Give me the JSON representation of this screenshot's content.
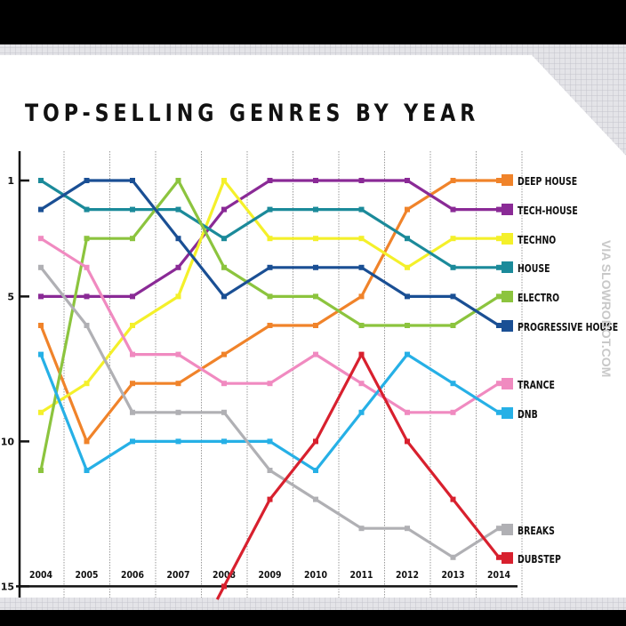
{
  "chart_data": {
    "type": "line",
    "title": "TOP-SELLING GENRES BY YEAR",
    "x": [
      2004,
      2005,
      2006,
      2007,
      2008,
      2009,
      2010,
      2011,
      2012,
      2013,
      2014
    ],
    "x_tick_labels": [
      "2004",
      "2005",
      "2006",
      "2007",
      "2008",
      "2009",
      "2010",
      "2011",
      "2012",
      "2013",
      "2014"
    ],
    "y_tick_labels": [
      "1",
      "5",
      "10",
      "15"
    ],
    "y_ticks": [
      1,
      5,
      10,
      15
    ],
    "ylim": [
      1,
      15
    ],
    "y_inverted": true,
    "grid": "vertical dotted",
    "legend": "right",
    "series": [
      {
        "name": "DEEP HOUSE",
        "color": "#f0832a",
        "values": [
          6,
          10,
          8,
          8,
          7,
          6,
          6,
          5,
          2,
          1,
          1
        ]
      },
      {
        "name": "TECH-HOUSE",
        "color": "#8a2a96",
        "values": [
          5,
          5,
          5,
          4,
          2,
          1,
          1,
          1,
          1,
          2,
          2
        ]
      },
      {
        "name": "TECHNO",
        "color": "#f4f02a",
        "values": [
          9,
          8,
          6,
          5,
          1,
          3,
          3,
          3,
          4,
          3,
          3
        ]
      },
      {
        "name": "HOUSE",
        "color": "#1b8a9a",
        "values": [
          1,
          2,
          2,
          2,
          3,
          2,
          2,
          2,
          3,
          4,
          4
        ]
      },
      {
        "name": "ELECTRO",
        "color": "#8cc43e",
        "values": [
          11,
          3,
          3,
          1,
          4,
          5,
          5,
          6,
          6,
          6,
          5
        ]
      },
      {
        "name": "PROGRESSIVE HOUSE",
        "color": "#1a4f94",
        "values": [
          2,
          1,
          1,
          3,
          5,
          4,
          4,
          4,
          5,
          5,
          6
        ]
      },
      {
        "name": "TRANCE",
        "color": "#f08ac0",
        "values": [
          3,
          4,
          7,
          7,
          8,
          8,
          7,
          8,
          9,
          9,
          8
        ]
      },
      {
        "name": "DNB",
        "color": "#26b0e6",
        "values": [
          7,
          11,
          10,
          10,
          10,
          10,
          11,
          9,
          7,
          8,
          9
        ]
      },
      {
        "name": "BREAKS",
        "color": "#b0b0b4",
        "values": [
          4,
          6,
          9,
          9,
          9,
          11,
          12,
          13,
          13,
          14,
          13
        ]
      },
      {
        "name": "DUBSTEP",
        "color": "#d8202e",
        "values": [
          null,
          null,
          null,
          null,
          15,
          12,
          10,
          7,
          10,
          12,
          14
        ]
      }
    ]
  },
  "watermark": "VIA SLOWROBOT.COM"
}
